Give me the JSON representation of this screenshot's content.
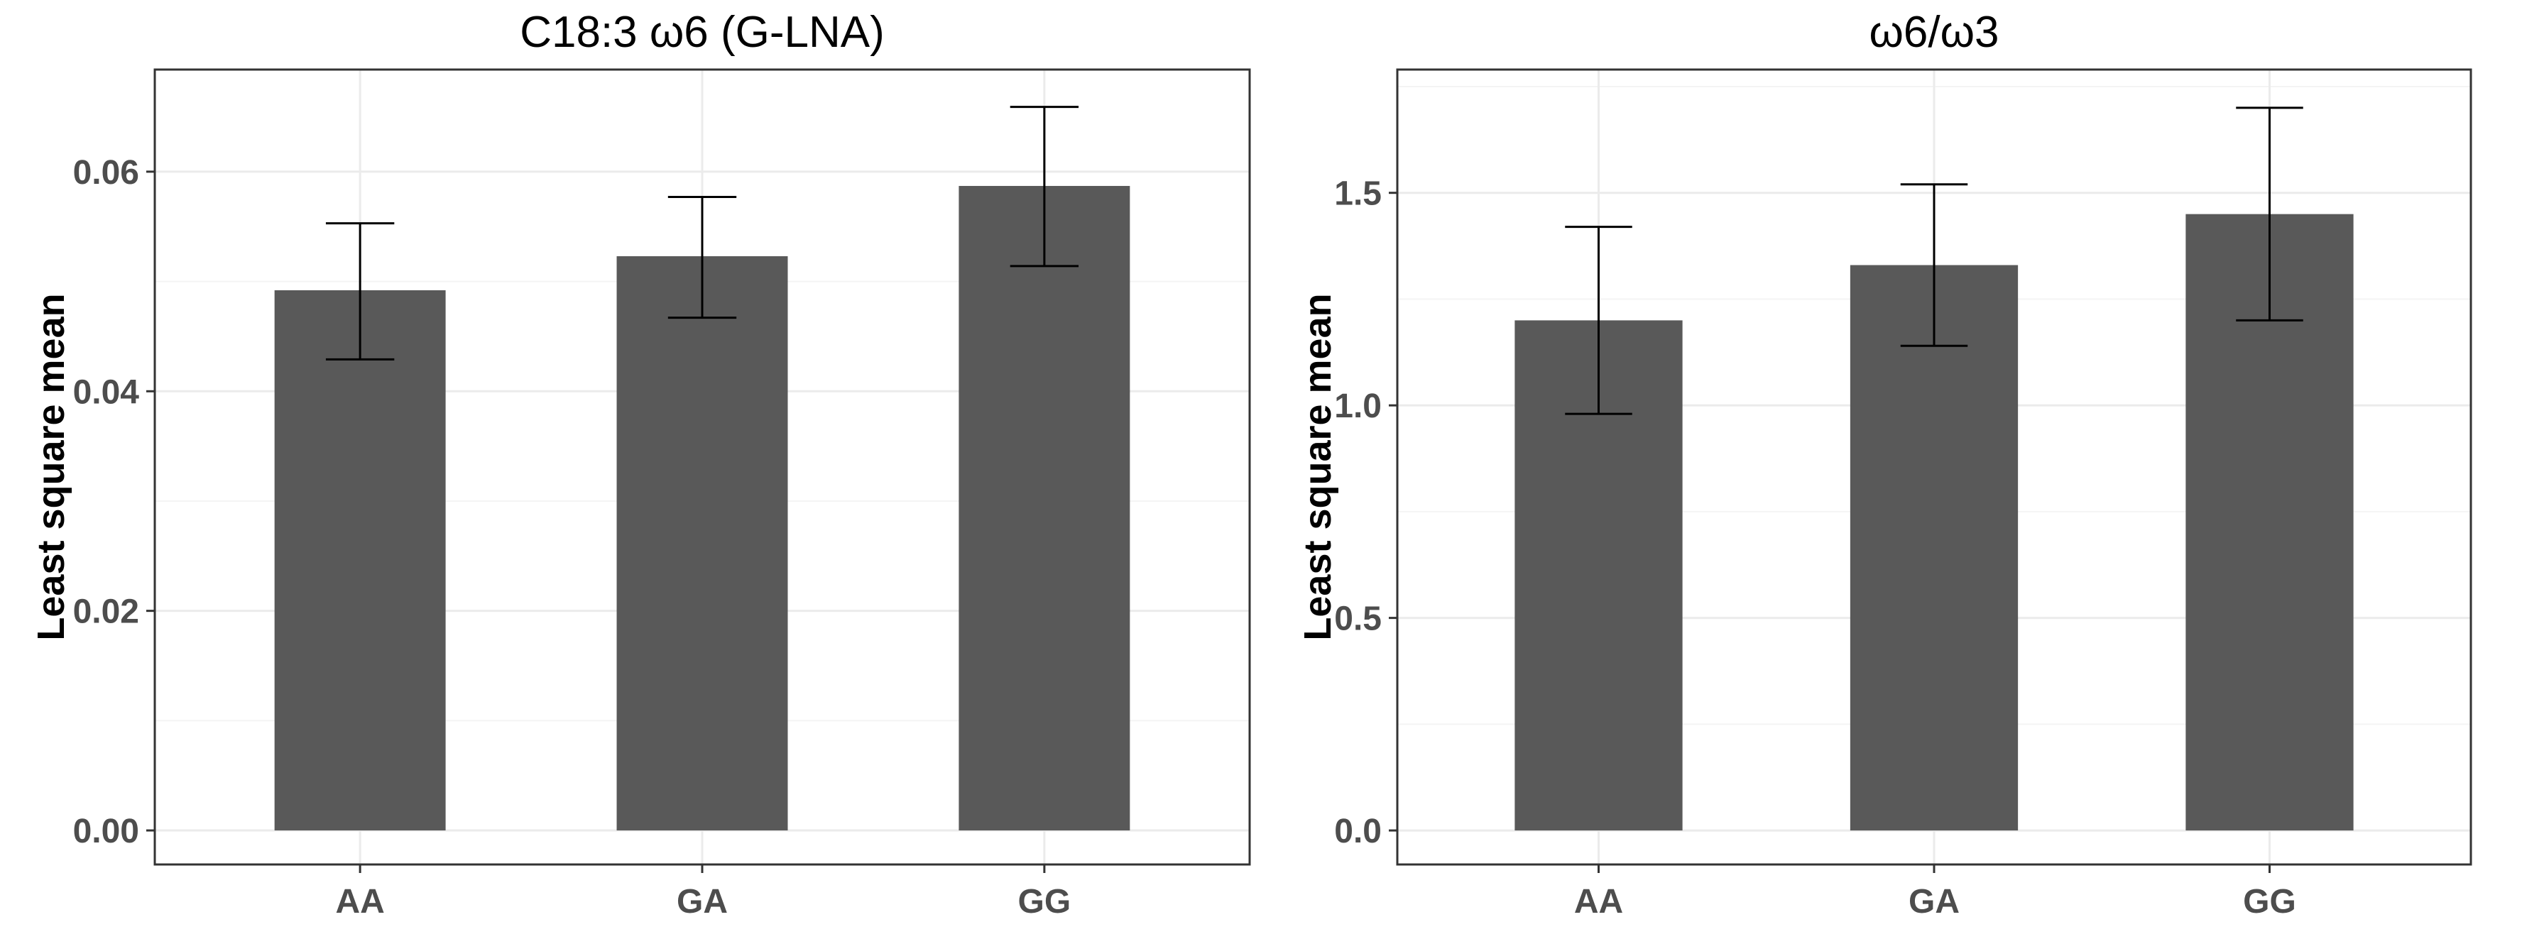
{
  "chart_data": [
    {
      "type": "bar",
      "title": "C18:3 ω6 (G-LNA)",
      "xlabel": "",
      "ylabel": "Least square mean",
      "categories": [
        "AA",
        "GA",
        "GG"
      ],
      "values": [
        0.0492,
        0.0523,
        0.0587
      ],
      "error_lower": [
        0.0429,
        0.0467,
        0.0514
      ],
      "error_upper": [
        0.0553,
        0.0577,
        0.0659
      ],
      "ylim": [
        -0.0031,
        0.0693
      ],
      "yticks": [
        0.0,
        0.02,
        0.04,
        0.06
      ],
      "ytick_labels": [
        "0.00",
        "0.02",
        "0.04",
        "0.06"
      ],
      "bar_color": "#595959",
      "grid": true
    },
    {
      "type": "bar",
      "title": "ω6/ω3",
      "xlabel": "",
      "ylabel": "Least square mean",
      "categories": [
        "AA",
        "GA",
        "GG"
      ],
      "values": [
        1.2,
        1.33,
        1.45
      ],
      "error_lower": [
        0.98,
        1.14,
        1.2
      ],
      "error_upper": [
        1.42,
        1.52,
        1.7
      ],
      "ylim": [
        -0.08,
        1.79
      ],
      "yticks": [
        0.0,
        0.5,
        1.0,
        1.5
      ],
      "ytick_labels": [
        "0.0",
        "0.5",
        "1.0",
        "1.5"
      ],
      "bar_color": "#595959",
      "grid": true
    }
  ]
}
